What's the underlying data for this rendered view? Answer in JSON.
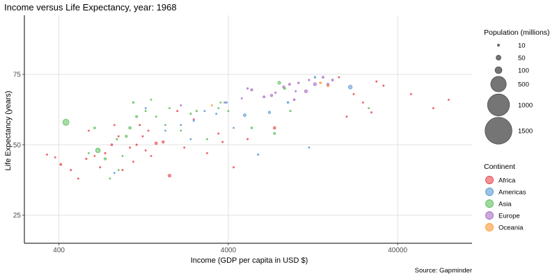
{
  "chart_data": {
    "type": "scatter",
    "title": "Income versus Life Expectancy, year: 1968",
    "xlabel": "Income (GDP per capita in USD $)",
    "ylabel": "Life Expectancy (years)",
    "caption": "Source: Gapminder",
    "x_scale": "log10",
    "xlim": [
      250,
      110000
    ],
    "ylim": [
      15,
      96
    ],
    "x_ticks": [
      400,
      4000,
      40000
    ],
    "x_tick_labels": [
      "400",
      "4000",
      "40000"
    ],
    "y_ticks": [
      25,
      50,
      75
    ],
    "y_tick_labels": [
      "25",
      "50",
      "75"
    ],
    "grid": true,
    "size_legend": {
      "title": "Population (millions)",
      "values": [
        10,
        50,
        100,
        500,
        1000,
        1500
      ],
      "labels": [
        "10",
        "50",
        "100",
        "500",
        "1000",
        "1500"
      ]
    },
    "color_legend": {
      "title": "Continent",
      "entries": [
        {
          "name": "Africa",
          "color": "#e8474f"
        },
        {
          "name": "Americas",
          "color": "#5b9bd1"
        },
        {
          "name": "Asia",
          "color": "#5dbf5d"
        },
        {
          "name": "Europe",
          "color": "#a86cc4"
        },
        {
          "name": "Oceania",
          "color": "#ff9933"
        }
      ]
    },
    "series": [
      {
        "name": "Africa",
        "points": [
          [
            340,
            46.5,
            3
          ],
          [
            380,
            45.5,
            3
          ],
          [
            410,
            43,
            8
          ],
          [
            470,
            41,
            4
          ],
          [
            520,
            38,
            3
          ],
          [
            580,
            45,
            5
          ],
          [
            600,
            55,
            3
          ],
          [
            700,
            42,
            3
          ],
          [
            750,
            47,
            5
          ],
          [
            820,
            50,
            8
          ],
          [
            900,
            53,
            4
          ],
          [
            950,
            41,
            3
          ],
          [
            1050,
            49,
            4
          ],
          [
            1100,
            44,
            3
          ],
          [
            1150,
            50,
            5
          ],
          [
            1250,
            53,
            3
          ],
          [
            1300,
            48,
            3
          ],
          [
            1400,
            46,
            4
          ],
          [
            1500,
            50.5,
            14
          ],
          [
            1650,
            51,
            12
          ],
          [
            1800,
            39,
            16
          ],
          [
            2000,
            62,
            4
          ],
          [
            2200,
            49,
            3
          ],
          [
            2500,
            59,
            3
          ],
          [
            3000,
            47,
            3
          ],
          [
            3500,
            54,
            3
          ],
          [
            3700,
            51,
            4
          ],
          [
            4300,
            42,
            3
          ],
          [
            5200,
            52,
            3
          ],
          [
            7500,
            56,
            13
          ],
          [
            1200,
            57,
            3
          ],
          [
            850,
            57,
            3
          ],
          [
            650,
            46,
            3
          ],
          [
            1350,
            55,
            3
          ]
        ]
      },
      {
        "name": "Americas",
        "points": [
          [
            850,
            40,
            4
          ],
          [
            1300,
            63,
            4
          ],
          [
            1700,
            55,
            4
          ],
          [
            2100,
            57,
            3
          ],
          [
            2500,
            58.5,
            3
          ],
          [
            2900,
            62,
            4
          ],
          [
            3400,
            61,
            3
          ],
          [
            3900,
            65,
            6
          ],
          [
            4300,
            56,
            3
          ],
          [
            5000,
            60.5,
            16
          ],
          [
            6000,
            46.5,
            5
          ],
          [
            7000,
            61.5,
            12
          ],
          [
            9000,
            65,
            7
          ],
          [
            12000,
            49,
            3
          ],
          [
            21000,
            70.5,
            30
          ],
          [
            13000,
            74,
            7
          ],
          [
            2400,
            52,
            4
          ]
        ]
      },
      {
        "name": "Asia",
        "points": [
          [
            440,
            58,
            80
          ],
          [
            600,
            47,
            3
          ],
          [
            650,
            56,
            8
          ],
          [
            750,
            45,
            12
          ],
          [
            680,
            48,
            45
          ],
          [
            800,
            38,
            4
          ],
          [
            900,
            41,
            4
          ],
          [
            950,
            46,
            4
          ],
          [
            1000,
            53,
            10
          ],
          [
            1050,
            56,
            14
          ],
          [
            1100,
            65,
            6
          ],
          [
            1150,
            60,
            10
          ],
          [
            1200,
            57,
            4
          ],
          [
            1300,
            62,
            4
          ],
          [
            1400,
            66,
            4
          ],
          [
            1500,
            60,
            4
          ],
          [
            1700,
            57,
            4
          ],
          [
            1800,
            63,
            4
          ],
          [
            2100,
            55,
            4
          ],
          [
            2400,
            61,
            5
          ],
          [
            2600,
            62,
            5
          ],
          [
            3000,
            52,
            4
          ],
          [
            3500,
            63,
            4
          ],
          [
            4000,
            62,
            4
          ],
          [
            5500,
            56,
            7
          ],
          [
            7500,
            54,
            8
          ],
          [
            8000,
            72,
            18
          ],
          [
            9300,
            62,
            5
          ],
          [
            8600,
            70,
            8
          ],
          [
            27000,
            63,
            3
          ],
          [
            880,
            52,
            6
          ],
          [
            3600,
            65,
            4
          ]
        ]
      },
      {
        "name": "Europe",
        "points": [
          [
            2100,
            64,
            3
          ],
          [
            3800,
            65,
            3
          ],
          [
            4800,
            66.5,
            3
          ],
          [
            5500,
            69.5,
            11
          ],
          [
            6500,
            67,
            9
          ],
          [
            7200,
            67.5,
            12
          ],
          [
            7600,
            68.5,
            5
          ],
          [
            8500,
            70.5,
            12
          ],
          [
            9200,
            71.5,
            8
          ],
          [
            10000,
            69,
            3
          ],
          [
            11500,
            69,
            19
          ],
          [
            13000,
            71.5,
            18
          ],
          [
            14500,
            74,
            8
          ],
          [
            15500,
            71.5,
            9
          ],
          [
            16500,
            73,
            8
          ],
          [
            12000,
            73,
            5
          ],
          [
            9800,
            66,
            7
          ],
          [
            5200,
            70,
            5
          ],
          [
            10400,
            72,
            6
          ]
        ]
      },
      {
        "name": "Oceania",
        "points": [
          [
            15500,
            71,
            13
          ],
          [
            14000,
            72,
            8
          ],
          [
            3200,
            64,
            3
          ]
        ]
      },
      {
        "name": "",
        "points": [
          [
            18000,
            74,
            3
          ],
          [
            22000,
            68,
            3
          ],
          [
            25000,
            65,
            3
          ],
          [
            28000,
            61.5,
            3
          ],
          [
            33000,
            71,
            3
          ],
          [
            48000,
            68,
            3
          ],
          [
            65000,
            63,
            3
          ],
          [
            80000,
            66,
            3
          ],
          [
            30000,
            72.5,
            3
          ],
          [
            20000,
            60,
            3
          ]
        ]
      }
    ]
  }
}
